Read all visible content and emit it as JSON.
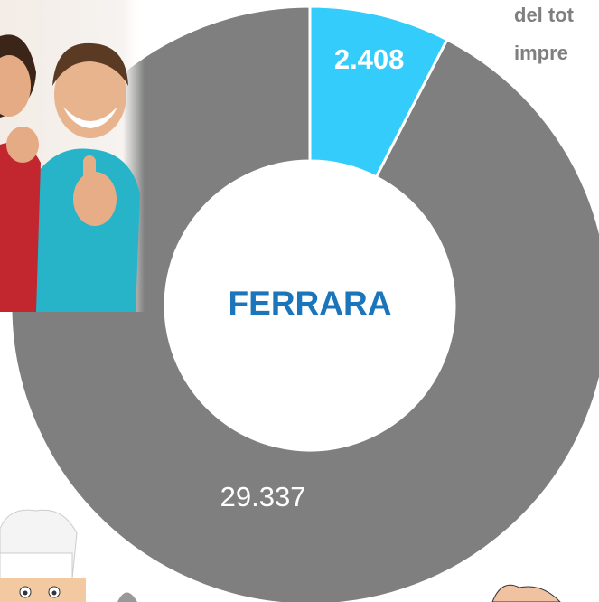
{
  "chart_data": {
    "type": "pie",
    "donut": true,
    "center_label": "FERRARA",
    "annotations": [
      "del tot",
      "impre"
    ],
    "values": [
      2408,
      29337
    ],
    "value_labels": [
      "2.408",
      "29.337"
    ],
    "colors": [
      "#33ccfb",
      "#7f7f7f"
    ]
  }
}
